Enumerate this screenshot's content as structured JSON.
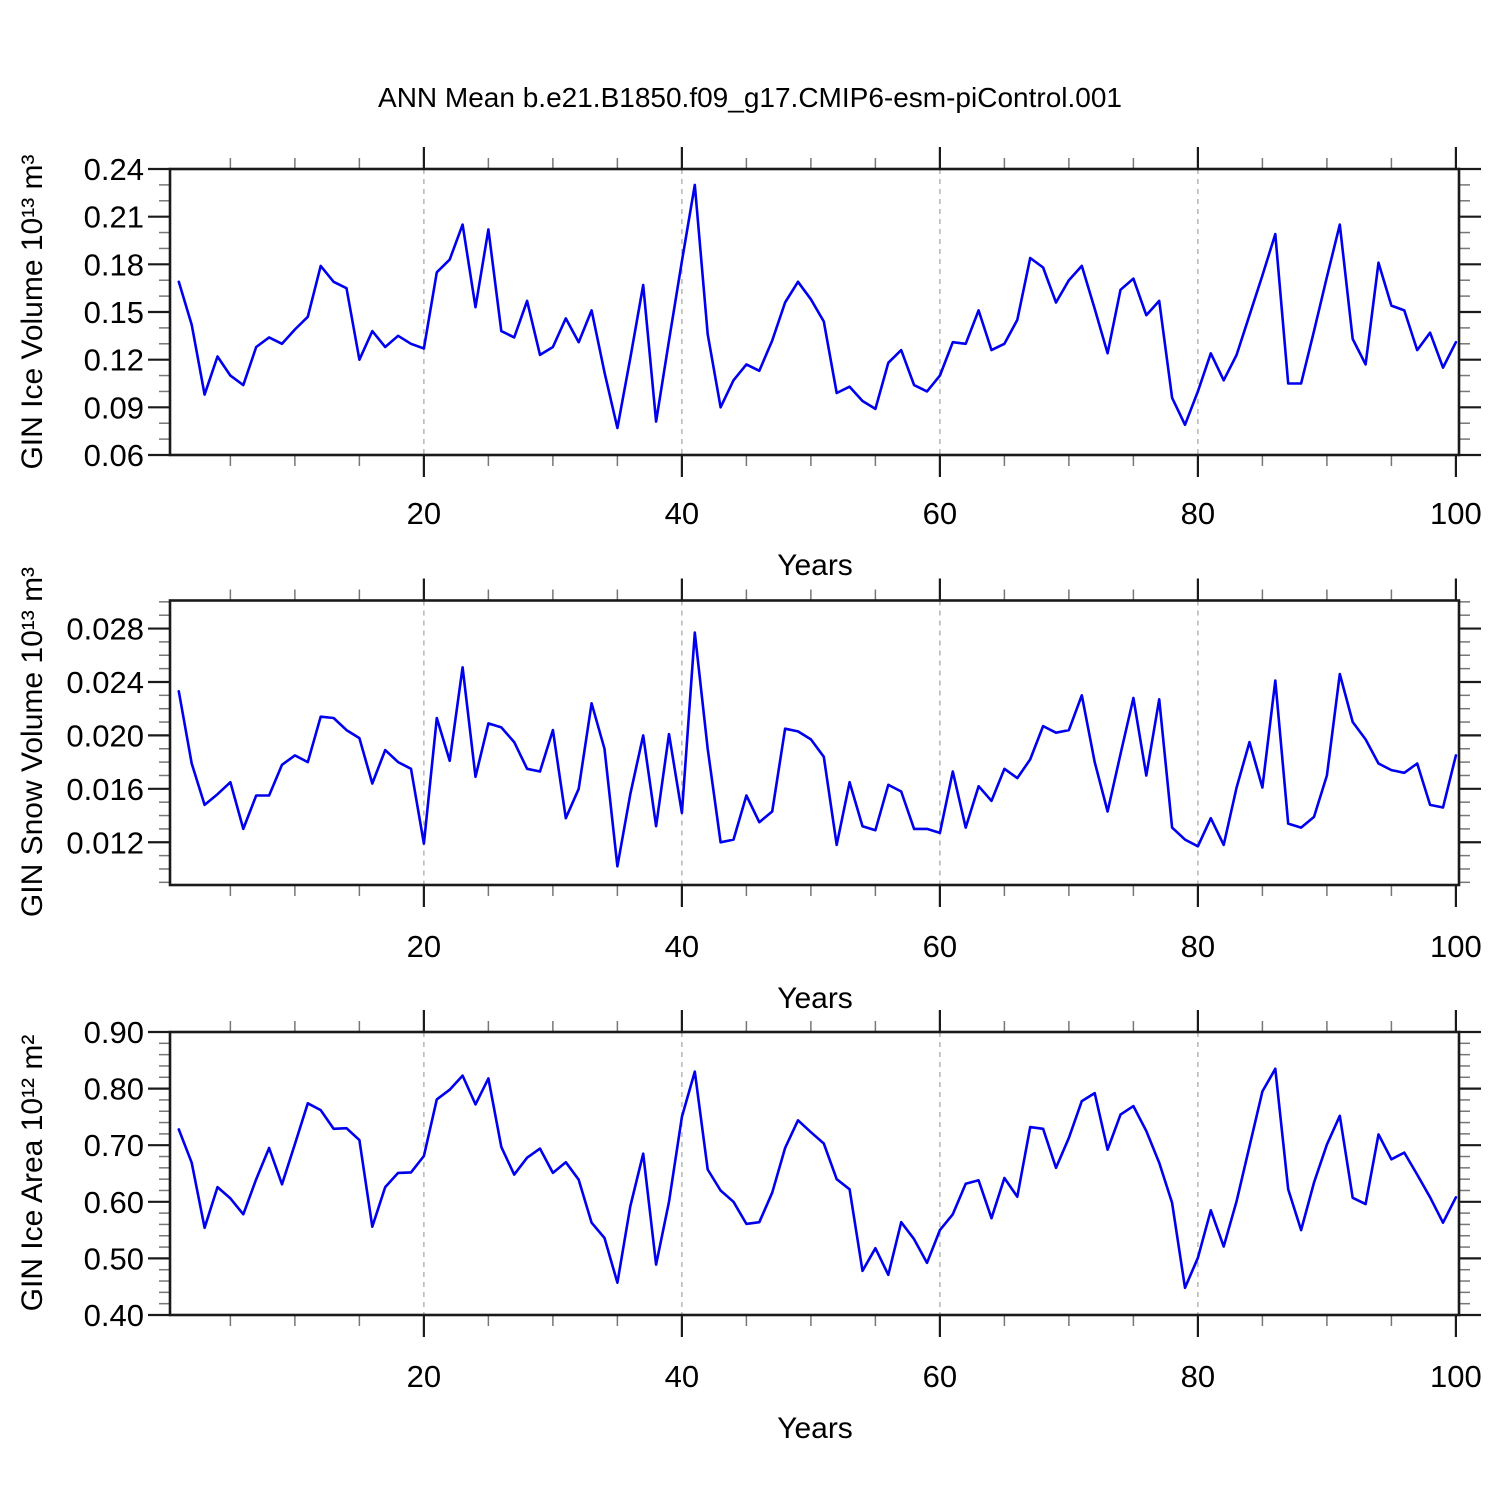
{
  "page": {
    "title": "ANN Mean b.e21.B1850.f09_g17.CMIP6-esm-piControl.001",
    "background": "#ffffff"
  },
  "style": {
    "line_blue": "#0000ee",
    "axis_color": "#1a1a1a",
    "minor_tick_color": "#777777",
    "gridline_color": "#b0b0b0",
    "text_color": "#000000"
  },
  "chart_data": [
    {
      "type": "line",
      "name": "gin-ice-volume",
      "ylabel": "GIN Ice Volume 10¹³ m³",
      "xlabel": "Years",
      "x_start": 1,
      "x_step": 1,
      "xlim": [
        0.32,
        100.24
      ],
      "ylim": [
        0.06,
        0.24
      ],
      "x_ticks": [
        20,
        40,
        60,
        80,
        100
      ],
      "x_minor_step": 5,
      "x_gridlines": [
        20,
        40,
        60,
        80
      ],
      "y_ticks": [
        0.06,
        0.09,
        0.12,
        0.15,
        0.18,
        0.21,
        0.24
      ],
      "y_tick_labels": [
        "0.06",
        "0.09",
        "0.12",
        "0.15",
        "0.18",
        "0.21",
        "0.24"
      ],
      "y_minor_step": 0.01,
      "grid": "dashed-vertical",
      "line_color": "#0000ee",
      "values": [
        0.169,
        0.142,
        0.098,
        0.122,
        0.11,
        0.104,
        0.128,
        0.134,
        0.13,
        0.139,
        0.147,
        0.179,
        0.169,
        0.165,
        0.12,
        0.138,
        0.128,
        0.135,
        0.13,
        0.127,
        0.175,
        0.183,
        0.205,
        0.153,
        0.202,
        0.138,
        0.134,
        0.157,
        0.123,
        0.128,
        0.146,
        0.131,
        0.151,
        0.112,
        0.077,
        0.121,
        0.167,
        0.081,
        0.132,
        0.182,
        0.23,
        0.136,
        0.09,
        0.107,
        0.117,
        0.113,
        0.132,
        0.156,
        0.169,
        0.158,
        0.144,
        0.099,
        0.103,
        0.094,
        0.089,
        0.118,
        0.126,
        0.104,
        0.1,
        0.11,
        0.131,
        0.13,
        0.151,
        0.126,
        0.13,
        0.145,
        0.184,
        0.178,
        0.156,
        0.17,
        0.179,
        0.152,
        0.124,
        0.164,
        0.171,
        0.148,
        0.157,
        0.096,
        0.079,
        0.1,
        0.124,
        0.107,
        0.123,
        0.148,
        0.173,
        0.199,
        0.105,
        0.105,
        0.138,
        0.172,
        0.205,
        0.133,
        0.117,
        0.181,
        0.154,
        0.151,
        0.126,
        0.137,
        0.115,
        0.131
      ]
    },
    {
      "type": "line",
      "name": "gin-snow-volume",
      "ylabel": "GIN Snow Volume 10¹³ m³",
      "xlabel": "Years",
      "x_start": 1,
      "x_step": 1,
      "xlim": [
        0.32,
        100.24
      ],
      "ylim": [
        0.0088,
        0.0301
      ],
      "x_ticks": [
        20,
        40,
        60,
        80,
        100
      ],
      "x_minor_step": 5,
      "x_gridlines": [
        20,
        40,
        60,
        80
      ],
      "y_ticks": [
        0.012,
        0.016,
        0.02,
        0.024,
        0.028
      ],
      "y_tick_labels": [
        "0.012",
        "0.016",
        "0.020",
        "0.024",
        "0.028"
      ],
      "y_minor_step": 0.001,
      "grid": "dashed-vertical",
      "line_color": "#0000ee",
      "values": [
        0.0233,
        0.0179,
        0.0148,
        0.0156,
        0.0165,
        0.013,
        0.0155,
        0.0155,
        0.0178,
        0.0185,
        0.018,
        0.0214,
        0.0213,
        0.0204,
        0.0198,
        0.0164,
        0.0189,
        0.018,
        0.0175,
        0.0119,
        0.0213,
        0.0181,
        0.0251,
        0.0169,
        0.0209,
        0.0206,
        0.0195,
        0.0175,
        0.0173,
        0.0204,
        0.0138,
        0.016,
        0.0224,
        0.019,
        0.0102,
        0.0156,
        0.02,
        0.0132,
        0.0201,
        0.0142,
        0.0277,
        0.019,
        0.012,
        0.0122,
        0.0155,
        0.0135,
        0.0143,
        0.0205,
        0.0203,
        0.0197,
        0.0184,
        0.0118,
        0.0165,
        0.0132,
        0.0129,
        0.0163,
        0.0158,
        0.013,
        0.013,
        0.0127,
        0.0173,
        0.0131,
        0.0162,
        0.0151,
        0.0175,
        0.0168,
        0.0182,
        0.0207,
        0.0202,
        0.0204,
        0.023,
        0.018,
        0.0143,
        0.0186,
        0.0228,
        0.017,
        0.0227,
        0.0131,
        0.0122,
        0.0117,
        0.0138,
        0.0118,
        0.0161,
        0.0195,
        0.0161,
        0.0241,
        0.0134,
        0.0131,
        0.0139,
        0.017,
        0.0246,
        0.021,
        0.0197,
        0.0179,
        0.0174,
        0.0172,
        0.0179,
        0.0148,
        0.0146,
        0.0185
      ]
    },
    {
      "type": "line",
      "name": "gin-ice-area",
      "ylabel": "GIN Ice Area 10¹² m²",
      "xlabel": "Years",
      "x_start": 1,
      "x_step": 1,
      "xlim": [
        0.32,
        100.24
      ],
      "ylim": [
        0.4,
        0.9
      ],
      "x_ticks": [
        20,
        40,
        60,
        80,
        100
      ],
      "x_minor_step": 5,
      "x_gridlines": [
        20,
        40,
        60,
        80
      ],
      "y_ticks": [
        0.4,
        0.5,
        0.6,
        0.7,
        0.8,
        0.9
      ],
      "y_tick_labels": [
        "0.40",
        "0.50",
        "0.60",
        "0.70",
        "0.80",
        "0.90"
      ],
      "y_minor_step": 0.02,
      "grid": "dashed-vertical",
      "line_color": "#0000ee",
      "values": [
        0.728,
        0.669,
        0.554,
        0.626,
        0.606,
        0.578,
        0.64,
        0.695,
        0.631,
        0.702,
        0.774,
        0.762,
        0.729,
        0.73,
        0.709,
        0.556,
        0.626,
        0.651,
        0.652,
        0.681,
        0.781,
        0.798,
        0.823,
        0.772,
        0.818,
        0.697,
        0.648,
        0.678,
        0.694,
        0.651,
        0.67,
        0.639,
        0.563,
        0.536,
        0.457,
        0.592,
        0.685,
        0.489,
        0.6,
        0.75,
        0.83,
        0.657,
        0.62,
        0.6,
        0.561,
        0.564,
        0.616,
        0.695,
        0.744,
        0.723,
        0.703,
        0.64,
        0.622,
        0.478,
        0.518,
        0.471,
        0.564,
        0.534,
        0.492,
        0.55,
        0.578,
        0.632,
        0.638,
        0.571,
        0.642,
        0.609,
        0.732,
        0.729,
        0.66,
        0.713,
        0.778,
        0.792,
        0.692,
        0.754,
        0.769,
        0.725,
        0.669,
        0.598,
        0.448,
        0.501,
        0.585,
        0.521,
        0.601,
        0.698,
        0.795,
        0.835,
        0.622,
        0.55,
        0.634,
        0.701,
        0.752,
        0.607,
        0.596,
        0.719,
        0.675,
        0.687,
        0.648,
        0.608,
        0.563,
        0.608
      ]
    }
  ]
}
